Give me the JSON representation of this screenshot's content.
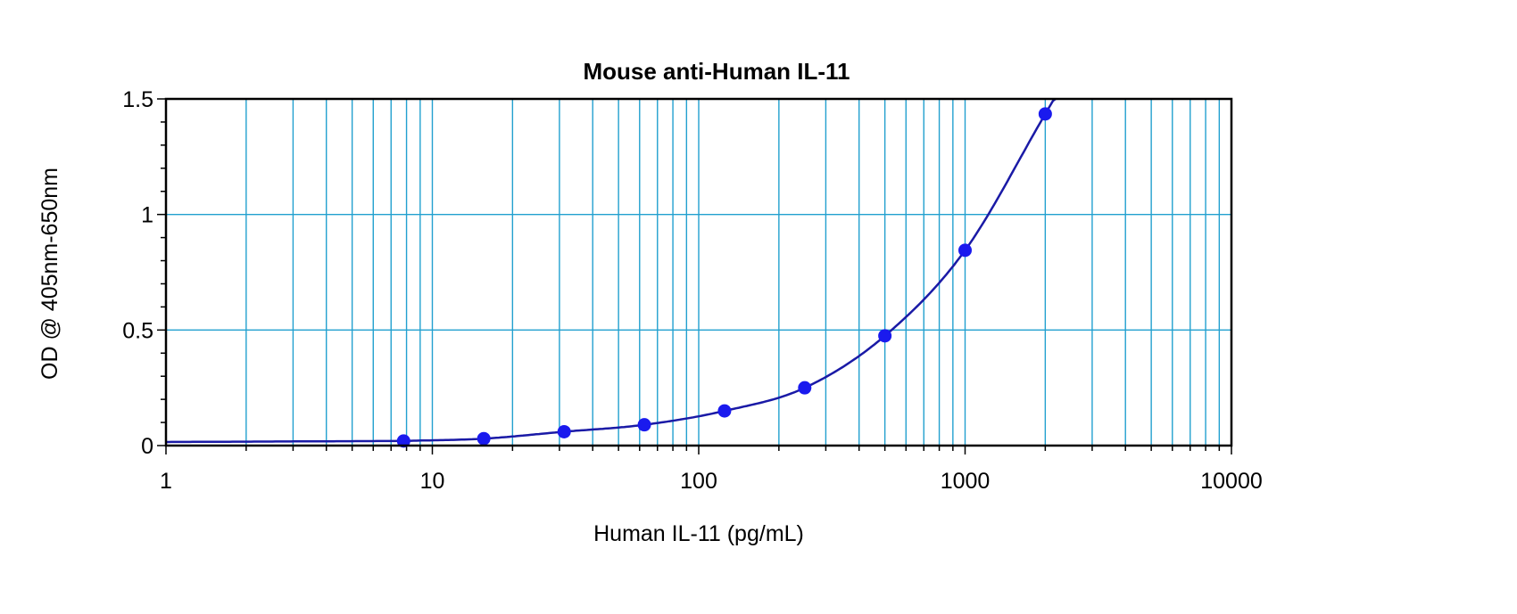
{
  "chart_data": {
    "type": "scatter",
    "title": "Mouse anti-Human IL-11",
    "xlabel": "Human IL-11 (pg/mL)",
    "ylabel": "OD @ 405nm-650nm",
    "x_scale": "log",
    "xlim": [
      1,
      10000
    ],
    "ylim": [
      0,
      1.5
    ],
    "x_ticks": [
      1,
      10,
      100,
      1000,
      10000
    ],
    "x_tick_labels": [
      "1",
      "10",
      "100",
      "1000",
      "10000"
    ],
    "y_ticks": [
      0,
      0.5,
      1,
      1.5
    ],
    "y_tick_labels": [
      "0",
      "0.5",
      "1",
      "1.5"
    ],
    "grid": true,
    "legend": "none",
    "series": [
      {
        "x": [
          7.8,
          15.6,
          31.25,
          62.5,
          125,
          250,
          500,
          1000,
          2000
        ],
        "y": [
          0.02,
          0.03,
          0.06,
          0.09,
          0.15,
          0.25,
          0.475,
          0.845,
          1.435
        ],
        "fit_curve": true
      }
    ],
    "colors": {
      "points": "#1a1aee",
      "curve": "#1a1aa6",
      "grid": "#22a0cf",
      "frame": "#000000"
    }
  }
}
